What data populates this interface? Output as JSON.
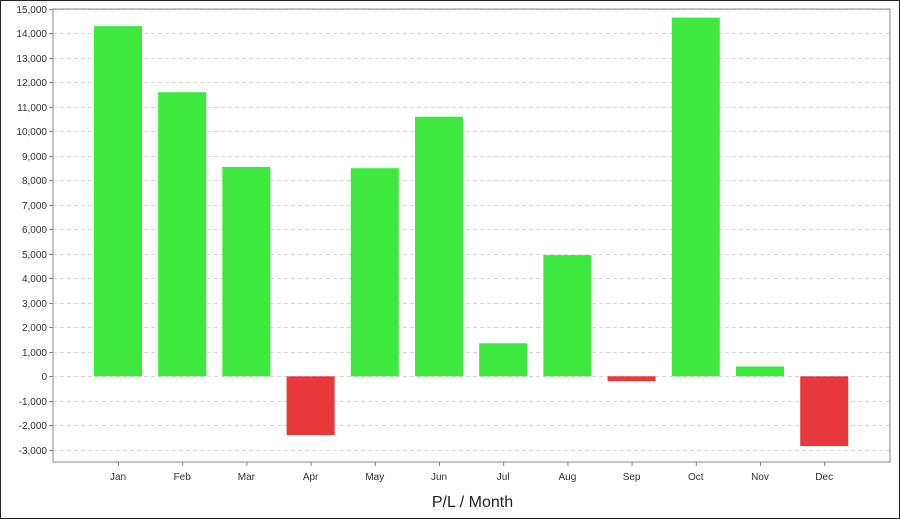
{
  "chart_data": {
    "type": "bar",
    "xlabel": "P/L / Month",
    "categories": [
      "Jan",
      "Feb",
      "Mar",
      "Apr",
      "May",
      "Jun",
      "Jul",
      "Aug",
      "Sep",
      "Oct",
      "Nov",
      "Dec"
    ],
    "values": [
      14300,
      11600,
      8550,
      -2400,
      8500,
      10600,
      1350,
      4950,
      -200,
      14650,
      400,
      -2850
    ],
    "ylim": [
      -3500,
      15000
    ],
    "yticks": [
      -3000,
      -2000,
      -1000,
      0,
      1000,
      2000,
      3000,
      4000,
      5000,
      6000,
      7000,
      8000,
      9000,
      10000,
      11000,
      12000,
      13000,
      14000,
      15000
    ],
    "ytick_labels": [
      "-3,000",
      "-2,000",
      "-1,000",
      "0",
      "1,000",
      "2,000",
      "3,000",
      "4,000",
      "5,000",
      "6,000",
      "7,000",
      "8,000",
      "9,000",
      "10,000",
      "11,000",
      "12,000",
      "13,000",
      "14,000",
      "15,000"
    ],
    "grid": true,
    "colors": {
      "positive": "#3ee83e",
      "negative": "#e8383c",
      "grid": "#d8d8d8",
      "axis": "#888888"
    }
  }
}
